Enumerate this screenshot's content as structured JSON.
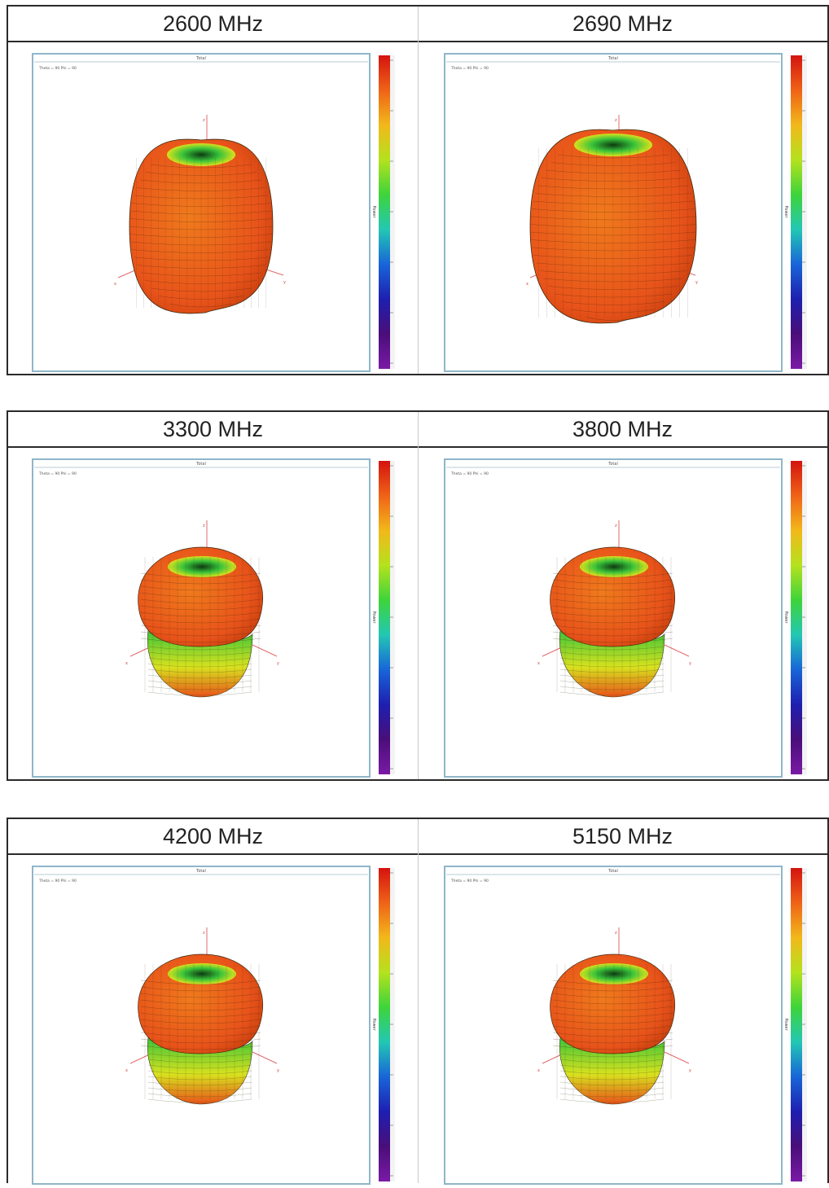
{
  "panels": [
    {
      "freq": "2600 MHz",
      "title": "Total",
      "theta_phi": "Theta = 90 Phi = 90",
      "colorbar_label": "Power",
      "axis_labels": [
        "z",
        "x",
        "y"
      ],
      "pattern": "donut"
    },
    {
      "freq": "2690 MHz",
      "title": "Total",
      "theta_phi": "Theta = 90 Phi = 90",
      "colorbar_label": "Power",
      "axis_labels": [
        "z",
        "x",
        "y"
      ],
      "pattern": "donut"
    },
    {
      "freq": "3300 MHz",
      "title": "Total",
      "theta_phi": "Theta = 90 Phi = 90",
      "colorbar_label": "Power",
      "axis_labels": [
        "z",
        "x",
        "y"
      ],
      "pattern": "lobed"
    },
    {
      "freq": "3800 MHz",
      "title": "Total",
      "theta_phi": "Theta = 90 Phi = 90",
      "colorbar_label": "Power",
      "axis_labels": [
        "z",
        "x",
        "y"
      ],
      "pattern": "lobed"
    },
    {
      "freq": "4200 MHz",
      "title": "Total",
      "theta_phi": "Theta = 90 Phi = 90",
      "colorbar_label": "Power",
      "axis_labels": [
        "z",
        "x",
        "y"
      ],
      "pattern": "lobed"
    },
    {
      "freq": "5150 MHz",
      "title": "Total",
      "theta_phi": "Theta = 90 Phi = 90",
      "colorbar_label": "Power",
      "axis_labels": [
        "z",
        "x",
        "y"
      ],
      "pattern": "lobed"
    }
  ],
  "colors": {
    "surface_primary": "#e8531a",
    "surface_highlight": "#f07a1c",
    "surface_green": "#39c43a",
    "surface_yellow": "#d8e21e",
    "colorbar": [
      "#d4130f",
      "#ef6317",
      "#f2b81a",
      "#b4e21d",
      "#3ed43b",
      "#23c7b4",
      "#1865d8",
      "#1e1fb0",
      "#4a0e7a",
      "#7a1aa6"
    ]
  }
}
